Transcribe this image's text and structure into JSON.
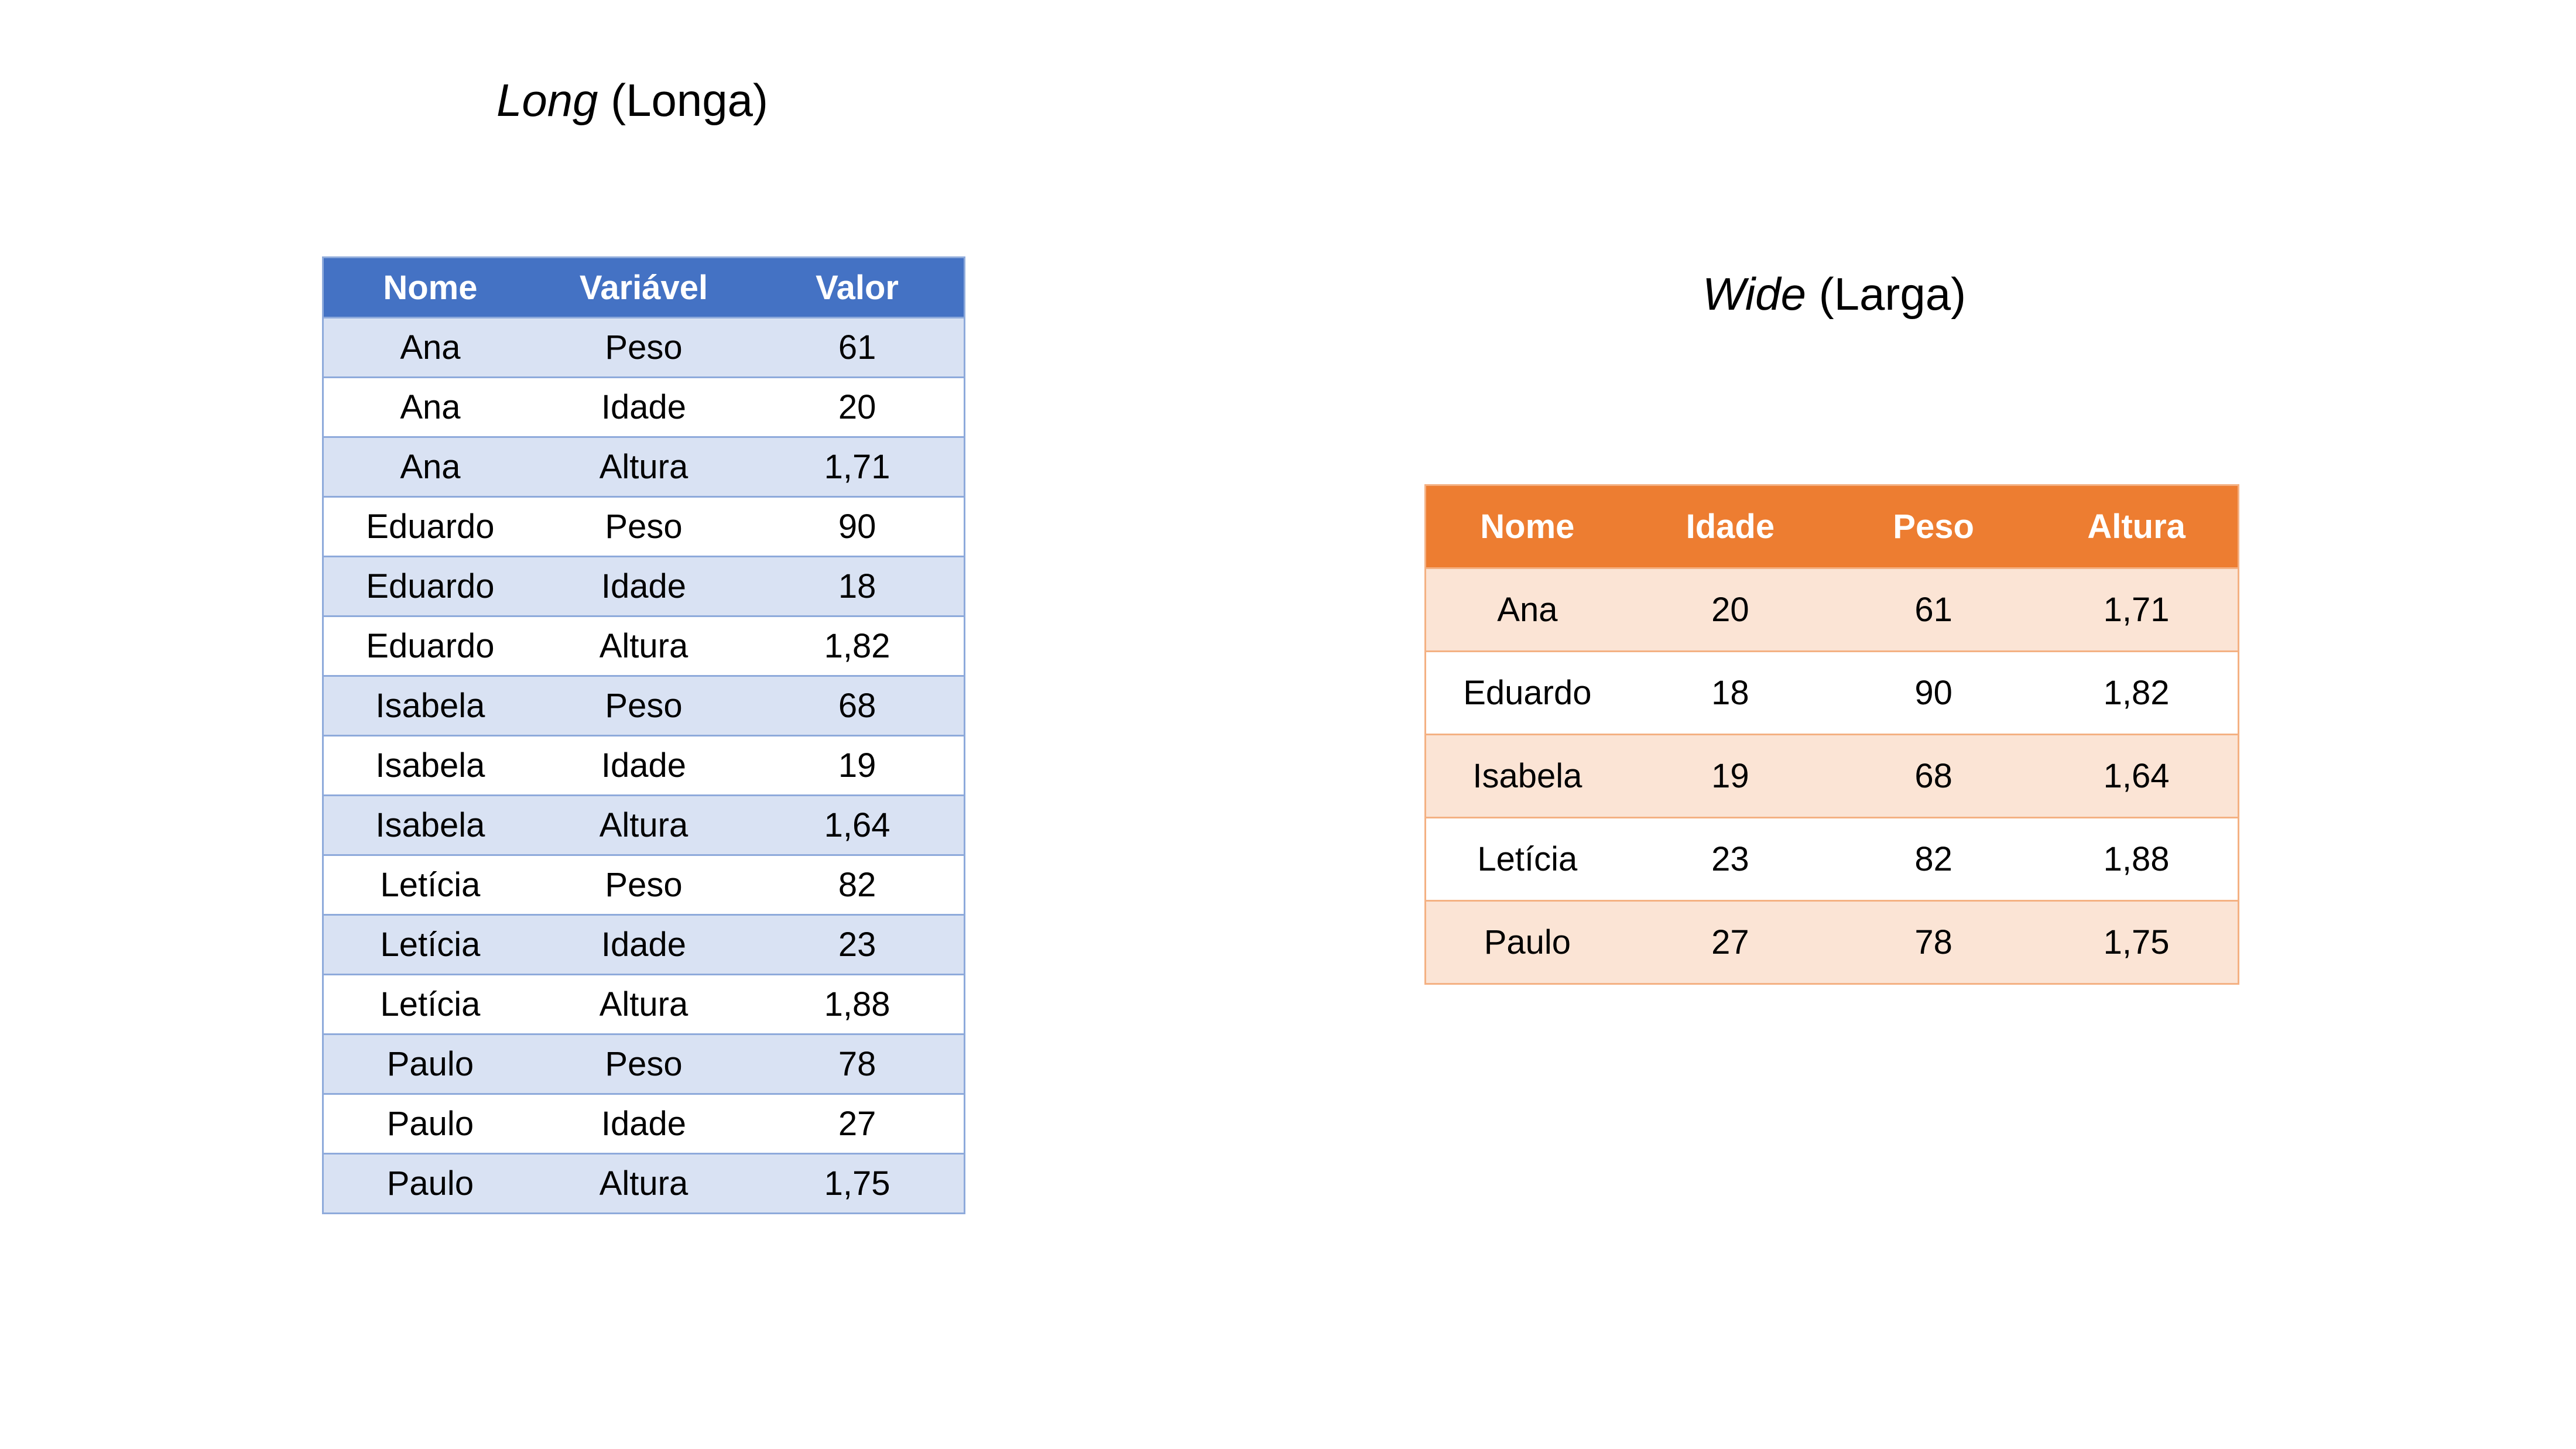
{
  "long": {
    "title_italic": "Long",
    "title_rest": " (Longa)",
    "headers": [
      "Nome",
      "Variável",
      "Valor"
    ],
    "rows": [
      [
        "Ana",
        "Peso",
        "61"
      ],
      [
        "Ana",
        "Idade",
        "20"
      ],
      [
        "Ana",
        "Altura",
        "1,71"
      ],
      [
        "Eduardo",
        "Peso",
        "90"
      ],
      [
        "Eduardo",
        "Idade",
        "18"
      ],
      [
        "Eduardo",
        "Altura",
        "1,82"
      ],
      [
        "Isabela",
        "Peso",
        "68"
      ],
      [
        "Isabela",
        "Idade",
        "19"
      ],
      [
        "Isabela",
        "Altura",
        "1,64"
      ],
      [
        "Letícia",
        "Peso",
        "82"
      ],
      [
        "Letícia",
        "Idade",
        "23"
      ],
      [
        "Letícia",
        "Altura",
        "1,88"
      ],
      [
        "Paulo",
        "Peso",
        "78"
      ],
      [
        "Paulo",
        "Idade",
        "27"
      ],
      [
        "Paulo",
        "Altura",
        "1,75"
      ]
    ]
  },
  "wide": {
    "title_italic": "Wide",
    "title_rest": " (Larga)",
    "headers": [
      "Nome",
      "Idade",
      "Peso",
      "Altura"
    ],
    "rows": [
      [
        "Ana",
        "20",
        "61",
        "1,71"
      ],
      [
        "Eduardo",
        "18",
        "90",
        "1,82"
      ],
      [
        "Isabela",
        "19",
        "68",
        "1,64"
      ],
      [
        "Letícia",
        "23",
        "82",
        "1,88"
      ],
      [
        "Paulo",
        "27",
        "78",
        "1,75"
      ]
    ]
  },
  "colors": {
    "long_header": "#4472c4",
    "long_band": "#d9e2f3",
    "long_border": "#8eaadb",
    "wide_header": "#ed7d31",
    "wide_band": "#fbe4d5",
    "wide_border": "#f4b183"
  }
}
